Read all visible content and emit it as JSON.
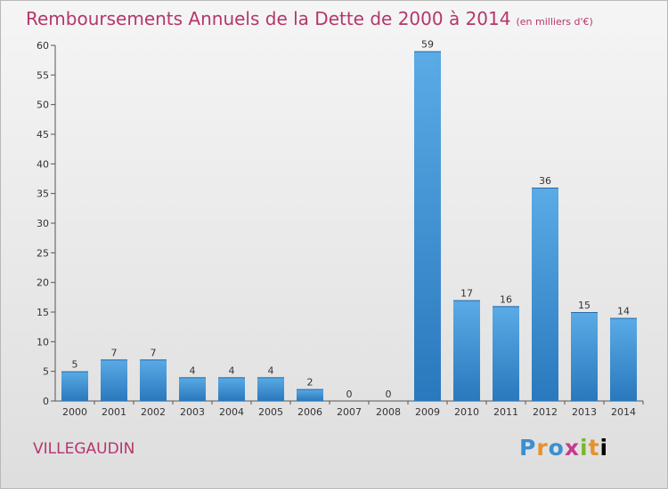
{
  "title": "Remboursements Annuels de la Dette de 2000 à 2014",
  "unit": "(en milliers d'€)",
  "town": "VILLEGAUDIN",
  "logo": [
    "P",
    "r",
    "o",
    "x",
    "i",
    "t",
    "i"
  ],
  "colors": {
    "title": "#b5366b",
    "bar_top": "#5aabe6",
    "bar_bottom": "#2a78bd"
  },
  "chart_data": {
    "type": "bar",
    "categories": [
      "2000",
      "2001",
      "2002",
      "2003",
      "2004",
      "2005",
      "2006",
      "2007",
      "2008",
      "2009",
      "2010",
      "2011",
      "2012",
      "2013",
      "2014"
    ],
    "values": [
      5,
      7,
      7,
      4,
      4,
      4,
      2,
      0,
      0,
      59,
      17,
      16,
      36,
      15,
      14
    ],
    "title": "Remboursements Annuels de la Dette de 2000 à 2014",
    "xlabel": "",
    "ylabel": "",
    "ylim": [
      0,
      60
    ],
    "yticks": [
      0,
      5,
      10,
      15,
      20,
      25,
      30,
      35,
      40,
      45,
      50,
      55,
      60
    ],
    "grid": false,
    "legend": "none"
  }
}
